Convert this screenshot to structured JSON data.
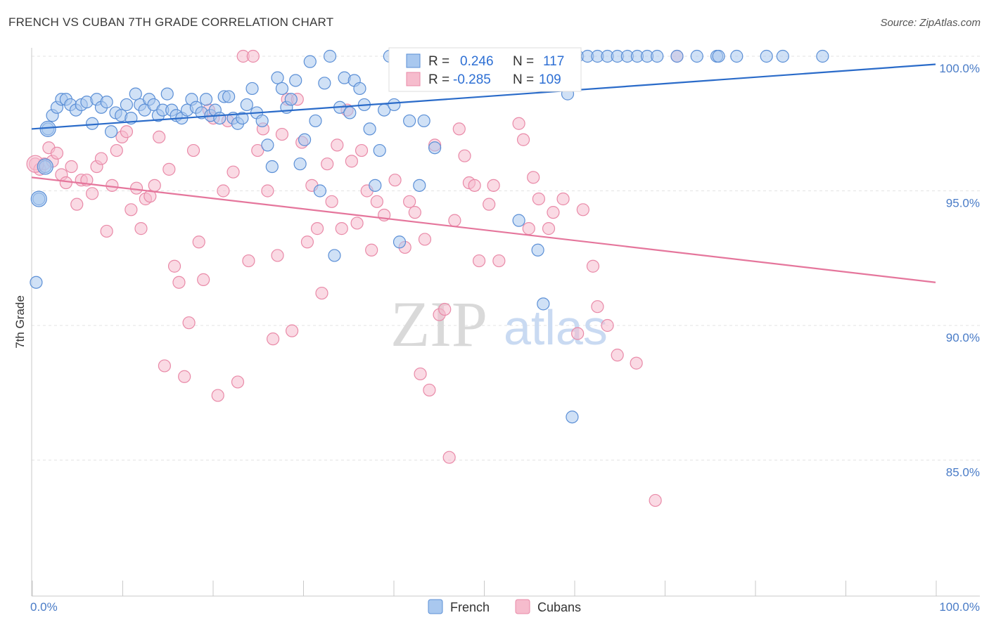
{
  "title": "FRENCH VS CUBAN 7TH GRADE CORRELATION CHART",
  "source": "Source: ZipAtlas.com",
  "watermark": {
    "zip": "ZIP",
    "atlas": "atlas"
  },
  "colors": {
    "french_fill": "#a9c8ef",
    "french_stroke": "#5b8fd6",
    "french_line": "#2a6bc9",
    "cubans_fill": "#f6bccd",
    "cubans_stroke": "#e98aa8",
    "cubans_line": "#e5769c",
    "grid": "#e3e3e3",
    "tick_label": "#4a7cc7"
  },
  "legend": {
    "french": {
      "r_label": "R =",
      "r_value": "0.246",
      "n_label": "N =",
      "n_value": "117"
    },
    "cubans": {
      "r_label": "R =",
      "r_value": "-0.285",
      "n_label": "N =",
      "n_value": "109"
    }
  },
  "chart_data": {
    "type": "scatter",
    "title": "FRENCH VS CUBAN 7TH GRADE CORRELATION CHART",
    "xlabel": "",
    "ylabel": "7th Grade",
    "xlim": [
      0,
      100
    ],
    "ylim": [
      80.5,
      100.7
    ],
    "x_tick_labels": [
      "0.0%",
      "100.0%"
    ],
    "y_ticks": [
      85,
      90,
      95,
      100
    ],
    "y_tick_labels": [
      "85.0%",
      "90.0%",
      "95.0%",
      "100.0%"
    ],
    "grid": "horizontal dashed",
    "legend_position": "top-center",
    "bottom_legend": [
      "French",
      "Cubans"
    ],
    "series": [
      {
        "name": "French",
        "r": 0.246,
        "n": 117,
        "trend": {
          "x": [
            0,
            100
          ],
          "y": [
            97.3,
            99.7
          ]
        },
        "points": [
          [
            0.5,
            91.6
          ],
          [
            0.8,
            94.7
          ],
          [
            1.5,
            95.9
          ],
          [
            1.8,
            97.3
          ],
          [
            2.3,
            97.8
          ],
          [
            2.8,
            98.1
          ],
          [
            3.3,
            98.4
          ],
          [
            3.8,
            98.4
          ],
          [
            4.3,
            98.2
          ],
          [
            4.9,
            98.0
          ],
          [
            5.5,
            98.2
          ],
          [
            6.1,
            98.3
          ],
          [
            6.7,
            97.5
          ],
          [
            7.2,
            98.4
          ],
          [
            7.7,
            98.1
          ],
          [
            8.3,
            98.3
          ],
          [
            8.8,
            97.2
          ],
          [
            9.3,
            97.9
          ],
          [
            9.9,
            97.8
          ],
          [
            10.5,
            98.2
          ],
          [
            11.0,
            97.7
          ],
          [
            11.5,
            98.6
          ],
          [
            12.0,
            98.2
          ],
          [
            12.5,
            98.0
          ],
          [
            13.0,
            98.4
          ],
          [
            13.5,
            98.2
          ],
          [
            14.0,
            97.8
          ],
          [
            14.5,
            98.0
          ],
          [
            15.0,
            98.6
          ],
          [
            15.5,
            98.0
          ],
          [
            16.0,
            97.8
          ],
          [
            16.6,
            97.7
          ],
          [
            17.2,
            98.0
          ],
          [
            17.7,
            98.4
          ],
          [
            18.2,
            98.1
          ],
          [
            18.8,
            97.9
          ],
          [
            19.3,
            98.4
          ],
          [
            19.8,
            97.8
          ],
          [
            20.3,
            98.0
          ],
          [
            20.8,
            97.7
          ],
          [
            21.3,
            98.5
          ],
          [
            21.8,
            98.5
          ],
          [
            22.3,
            97.7
          ],
          [
            22.8,
            97.5
          ],
          [
            23.3,
            97.7
          ],
          [
            23.8,
            98.2
          ],
          [
            24.4,
            98.8
          ],
          [
            24.9,
            97.9
          ],
          [
            25.5,
            97.6
          ],
          [
            26.1,
            96.7
          ],
          [
            26.6,
            95.9
          ],
          [
            27.2,
            99.2
          ],
          [
            27.7,
            98.8
          ],
          [
            28.2,
            98.1
          ],
          [
            28.7,
            98.4
          ],
          [
            29.2,
            99.1
          ],
          [
            29.7,
            96.0
          ],
          [
            30.2,
            96.9
          ],
          [
            30.8,
            99.8
          ],
          [
            31.4,
            97.6
          ],
          [
            31.9,
            95.0
          ],
          [
            32.4,
            99.0
          ],
          [
            33.0,
            100.0
          ],
          [
            33.5,
            92.6
          ],
          [
            34.1,
            98.1
          ],
          [
            34.6,
            99.2
          ],
          [
            35.2,
            97.9
          ],
          [
            35.7,
            99.1
          ],
          [
            36.3,
            98.8
          ],
          [
            36.8,
            98.2
          ],
          [
            37.4,
            97.3
          ],
          [
            38.0,
            95.2
          ],
          [
            38.5,
            96.5
          ],
          [
            39.0,
            98.0
          ],
          [
            39.6,
            100.0
          ],
          [
            40.1,
            98.2
          ],
          [
            40.7,
            93.1
          ],
          [
            41.2,
            100.0
          ],
          [
            41.8,
            97.6
          ],
          [
            42.3,
            100.0
          ],
          [
            42.9,
            95.2
          ],
          [
            43.4,
            97.6
          ],
          [
            44.0,
            100.0
          ],
          [
            44.6,
            96.6
          ],
          [
            45.1,
            100.0
          ],
          [
            46.2,
            100.0
          ],
          [
            47.3,
            100.0
          ],
          [
            48.4,
            100.0
          ],
          [
            49.5,
            100.0
          ],
          [
            50.6,
            100.0
          ],
          [
            51.7,
            100.0
          ],
          [
            52.8,
            100.0
          ],
          [
            53.9,
            93.9
          ],
          [
            54.9,
            100.0
          ],
          [
            56.0,
            92.8
          ],
          [
            56.6,
            90.8
          ],
          [
            57.1,
            100.0
          ],
          [
            58.2,
            100.0
          ],
          [
            59.3,
            98.6
          ],
          [
            59.8,
            86.6
          ],
          [
            60.4,
            100.0
          ],
          [
            61.5,
            100.0
          ],
          [
            62.6,
            100.0
          ],
          [
            63.7,
            100.0
          ],
          [
            64.8,
            100.0
          ],
          [
            65.9,
            100.0
          ],
          [
            67.0,
            100.0
          ],
          [
            68.1,
            100.0
          ],
          [
            69.2,
            100.0
          ],
          [
            71.4,
            100.0
          ],
          [
            73.6,
            100.0
          ],
          [
            75.8,
            100.0
          ],
          [
            76.0,
            100.0
          ],
          [
            78.0,
            100.0
          ],
          [
            81.3,
            100.0
          ],
          [
            83.1,
            100.0
          ],
          [
            87.5,
            100.0
          ]
        ]
      },
      {
        "name": "Cubans",
        "r": -0.285,
        "n": 109,
        "trend": {
          "x": [
            0,
            100
          ],
          "y": [
            95.5,
            91.6
          ]
        },
        "points": [
          [
            0.4,
            96.0
          ],
          [
            0.9,
            95.8
          ],
          [
            1.4,
            96.0
          ],
          [
            1.9,
            96.6
          ],
          [
            2.3,
            96.1
          ],
          [
            2.8,
            96.4
          ],
          [
            3.3,
            95.6
          ],
          [
            3.8,
            95.3
          ],
          [
            4.4,
            95.9
          ],
          [
            5.0,
            94.5
          ],
          [
            5.5,
            95.4
          ],
          [
            6.1,
            95.4
          ],
          [
            6.7,
            94.9
          ],
          [
            7.2,
            95.9
          ],
          [
            7.7,
            96.2
          ],
          [
            8.3,
            93.5
          ],
          [
            8.9,
            95.2
          ],
          [
            9.4,
            96.5
          ],
          [
            10.0,
            97.0
          ],
          [
            10.5,
            97.2
          ],
          [
            11.0,
            94.3
          ],
          [
            11.6,
            95.1
          ],
          [
            12.1,
            93.6
          ],
          [
            12.6,
            94.7
          ],
          [
            13.1,
            94.8
          ],
          [
            13.6,
            95.2
          ],
          [
            14.1,
            97.0
          ],
          [
            14.7,
            88.5
          ],
          [
            15.2,
            95.8
          ],
          [
            15.8,
            92.2
          ],
          [
            16.3,
            91.6
          ],
          [
            16.9,
            88.1
          ],
          [
            17.4,
            90.1
          ],
          [
            17.9,
            96.5
          ],
          [
            18.5,
            93.1
          ],
          [
            19.0,
            91.7
          ],
          [
            19.6,
            98.0
          ],
          [
            20.1,
            97.7
          ],
          [
            20.6,
            87.4
          ],
          [
            21.2,
            95.0
          ],
          [
            21.7,
            97.6
          ],
          [
            22.3,
            95.7
          ],
          [
            22.8,
            87.9
          ],
          [
            23.4,
            100.0
          ],
          [
            24.0,
            92.4
          ],
          [
            24.5,
            100.0
          ],
          [
            25.0,
            96.5
          ],
          [
            25.6,
            97.3
          ],
          [
            26.1,
            95.0
          ],
          [
            26.7,
            89.5
          ],
          [
            27.2,
            92.6
          ],
          [
            27.7,
            97.1
          ],
          [
            28.3,
            98.4
          ],
          [
            28.8,
            89.8
          ],
          [
            29.4,
            98.4
          ],
          [
            29.9,
            96.8
          ],
          [
            30.5,
            93.1
          ],
          [
            31.0,
            95.2
          ],
          [
            31.6,
            93.6
          ],
          [
            32.1,
            91.2
          ],
          [
            32.7,
            96.0
          ],
          [
            33.2,
            94.6
          ],
          [
            33.8,
            96.7
          ],
          [
            34.3,
            93.6
          ],
          [
            34.9,
            98.0
          ],
          [
            35.4,
            96.1
          ],
          [
            36.0,
            93.8
          ],
          [
            36.5,
            96.5
          ],
          [
            37.1,
            95.0
          ],
          [
            37.6,
            92.8
          ],
          [
            38.2,
            94.6
          ],
          [
            39.0,
            94.1
          ],
          [
            40.2,
            95.4
          ],
          [
            41.3,
            92.9
          ],
          [
            41.8,
            94.6
          ],
          [
            42.4,
            94.2
          ],
          [
            43.0,
            88.2
          ],
          [
            43.5,
            93.2
          ],
          [
            44.0,
            87.6
          ],
          [
            44.6,
            96.7
          ],
          [
            45.1,
            90.4
          ],
          [
            45.7,
            90.6
          ],
          [
            46.2,
            85.1
          ],
          [
            46.8,
            93.9
          ],
          [
            47.3,
            97.3
          ],
          [
            47.9,
            96.3
          ],
          [
            48.4,
            95.3
          ],
          [
            49.0,
            95.2
          ],
          [
            49.5,
            92.4
          ],
          [
            50.6,
            94.5
          ],
          [
            51.1,
            95.2
          ],
          [
            51.7,
            92.4
          ],
          [
            53.9,
            97.5
          ],
          [
            54.4,
            96.9
          ],
          [
            55.0,
            93.6
          ],
          [
            55.5,
            95.5
          ],
          [
            56.1,
            94.7
          ],
          [
            57.2,
            93.6
          ],
          [
            57.7,
            94.2
          ],
          [
            58.8,
            94.7
          ],
          [
            60.4,
            89.7
          ],
          [
            61.0,
            94.3
          ],
          [
            62.1,
            92.2
          ],
          [
            62.6,
            90.7
          ],
          [
            63.7,
            90.0
          ],
          [
            64.8,
            88.9
          ],
          [
            66.9,
            88.6
          ],
          [
            69.0,
            83.5
          ],
          [
            71.4,
            100.0
          ]
        ]
      }
    ]
  }
}
